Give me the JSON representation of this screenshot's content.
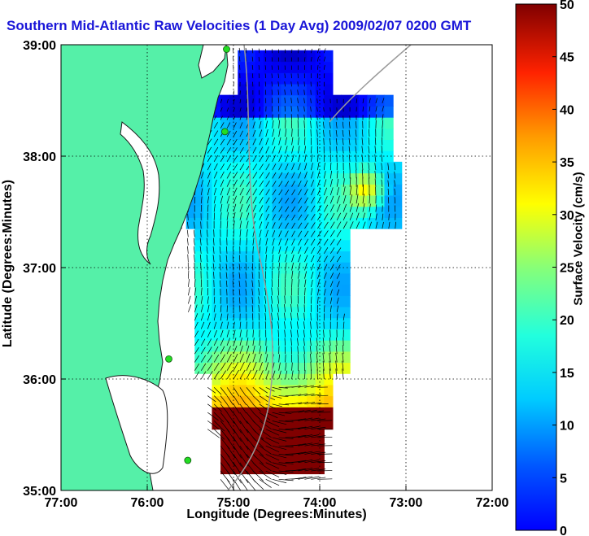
{
  "chart_data": {
    "type": "heatmap",
    "title": "Southern Mid-Atlantic Raw Velocities (1 Day Avg) 2009/02/07 0200 GMT",
    "xlabel": "Longitude (Degrees:Minutes)",
    "ylabel": "Latitude (Degrees:Minutes)",
    "colorbar_label": "Surface Velocity (cm/s)",
    "x_ticks": [
      "77:00",
      "76:00",
      "75:00",
      "74:00",
      "73:00",
      "72:00"
    ],
    "y_ticks": [
      "39:00",
      "38:00",
      "37:00",
      "36:00",
      "35:00"
    ],
    "xlim": [
      -77,
      -72
    ],
    "ylim": [
      35,
      39
    ],
    "colorbar_ticks": [
      0,
      5,
      10,
      15,
      20,
      25,
      30,
      35,
      40,
      45,
      50
    ],
    "colorbar_range": [
      0,
      50
    ],
    "grid": true,
    "colors": {
      "land": "#55f0a8",
      "water": "#ffffff",
      "title": "#1a16d8",
      "arrows": "#000000",
      "coast": "#1a1a1a",
      "stations": "#22dd22"
    },
    "velocity_regions": [
      {
        "region": "northern shelf (38:30-39:00N)",
        "speed_cm_s": 8
      },
      {
        "region": "central shelf (37:00-38:00N)",
        "speed_cm_s": 18
      },
      {
        "region": "offshore eddy near 73:30W 37:40N",
        "speed_cm_s": 33
      },
      {
        "region": "southern shelf off Cape Hatteras (35:00-35:45N)",
        "speed_cm_s": 48
      }
    ]
  }
}
